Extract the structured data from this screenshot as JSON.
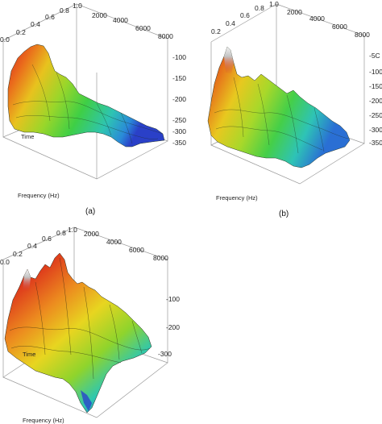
{
  "chart_data": [
    {
      "type": "surface",
      "panel_label": "(a)",
      "xlabel": "Frequency (Hz)",
      "ylabel": "Time",
      "zlabel": "",
      "x_ticks": [
        "2000",
        "4000",
        "6000",
        "8000"
      ],
      "y_ticks": [
        "0.0",
        "0.2",
        "0.4",
        "0.6",
        "0.8",
        "1.0"
      ],
      "z_ticks": [
        "-100",
        "-150",
        "-200",
        "-250",
        "-300",
        "-350"
      ],
      "xlim": [
        0,
        8000
      ],
      "ylim": [
        0,
        1
      ],
      "zlim": [
        -360,
        -90
      ],
      "peak_region": {
        "frequency": 1000,
        "time": 0.15,
        "z": -100
      },
      "trough_region": {
        "frequency": 7800,
        "time": 0.9,
        "z": -350
      }
    },
    {
      "type": "surface",
      "panel_label": "(b)",
      "xlabel": "Frequency (Hz)",
      "ylabel": "Time",
      "zlabel": "",
      "x_ticks": [
        "2000",
        "4000",
        "6000",
        "8000"
      ],
      "y_ticks": [
        "0.2",
        "0.4",
        "0.6",
        "0.8",
        "1.0"
      ],
      "z_ticks": [
        "-5C",
        "-100",
        "-150",
        "-200",
        "-250",
        "-300",
        "-350"
      ],
      "xlim": [
        0,
        8000
      ],
      "ylim": [
        0,
        1
      ],
      "zlim": [
        -360,
        -40
      ],
      "peak_region": {
        "frequency": 800,
        "time": 0.1,
        "z": -50
      },
      "trough_region": {
        "frequency": 7900,
        "time": 0.95,
        "z": -320
      }
    },
    {
      "type": "surface",
      "panel_label": "",
      "xlabel": "Frequency (Hz)",
      "ylabel": "Time",
      "zlabel": "",
      "x_ticks": [
        "2000",
        "4000",
        "6000",
        "8000"
      ],
      "y_ticks": [
        "0.0",
        "0.2",
        "0.4",
        "0.6",
        "0.8",
        "1.0"
      ],
      "z_ticks": [
        "-100",
        "-200",
        "-300"
      ],
      "xlim": [
        0,
        8000
      ],
      "ylim": [
        0,
        1
      ],
      "zlim": [
        -340,
        -60
      ],
      "peak_region": {
        "frequency": 1500,
        "time": 0.3,
        "z": -70
      },
      "trough_region": {
        "frequency": 5000,
        "time": 0.95,
        "z": -330
      }
    }
  ]
}
